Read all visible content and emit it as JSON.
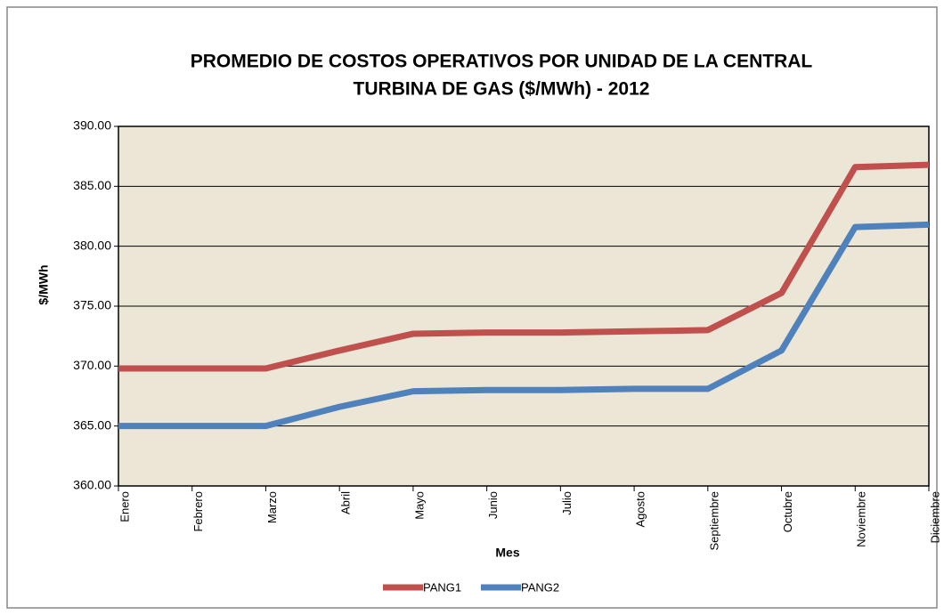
{
  "chart_data": {
    "type": "line",
    "title": [
      "PROMEDIO DE COSTOS OPERATIVOS POR UNIDAD DE LA CENTRAL",
      "TURBINA DE GAS ($/MWh) - 2012"
    ],
    "x_label": "Mes",
    "y_label": "$/MWh",
    "categories": [
      "Enero",
      "Febrero",
      "Marzo",
      "Abril",
      "Mayo",
      "Junio",
      "Julio",
      "Agosto",
      "Septiembre",
      "Octubre",
      "Noviembre",
      "Diciembre"
    ],
    "series": [
      {
        "name": "PANG1",
        "color": "#c0504d",
        "values": [
          369.8,
          369.8,
          369.8,
          371.3,
          372.7,
          372.8,
          372.8,
          372.9,
          373.0,
          376.1,
          386.6,
          386.8
        ]
      },
      {
        "name": "PANG2",
        "color": "#4f81bd",
        "values": [
          365.0,
          365.0,
          365.0,
          366.6,
          367.9,
          368.0,
          368.0,
          368.1,
          368.1,
          371.3,
          381.6,
          381.8
        ]
      }
    ],
    "ylim": [
      360,
      390
    ],
    "yticks": [
      {
        "value": 360,
        "label": "360.00"
      },
      {
        "value": 365,
        "label": "365.00"
      },
      {
        "value": 370,
        "label": "370.00"
      },
      {
        "value": 375,
        "label": "375.00"
      },
      {
        "value": 380,
        "label": "380.00"
      },
      {
        "value": 385,
        "label": "385.00"
      },
      {
        "value": 390,
        "label": "390.00"
      }
    ],
    "grid": true,
    "legend": "bottom"
  }
}
